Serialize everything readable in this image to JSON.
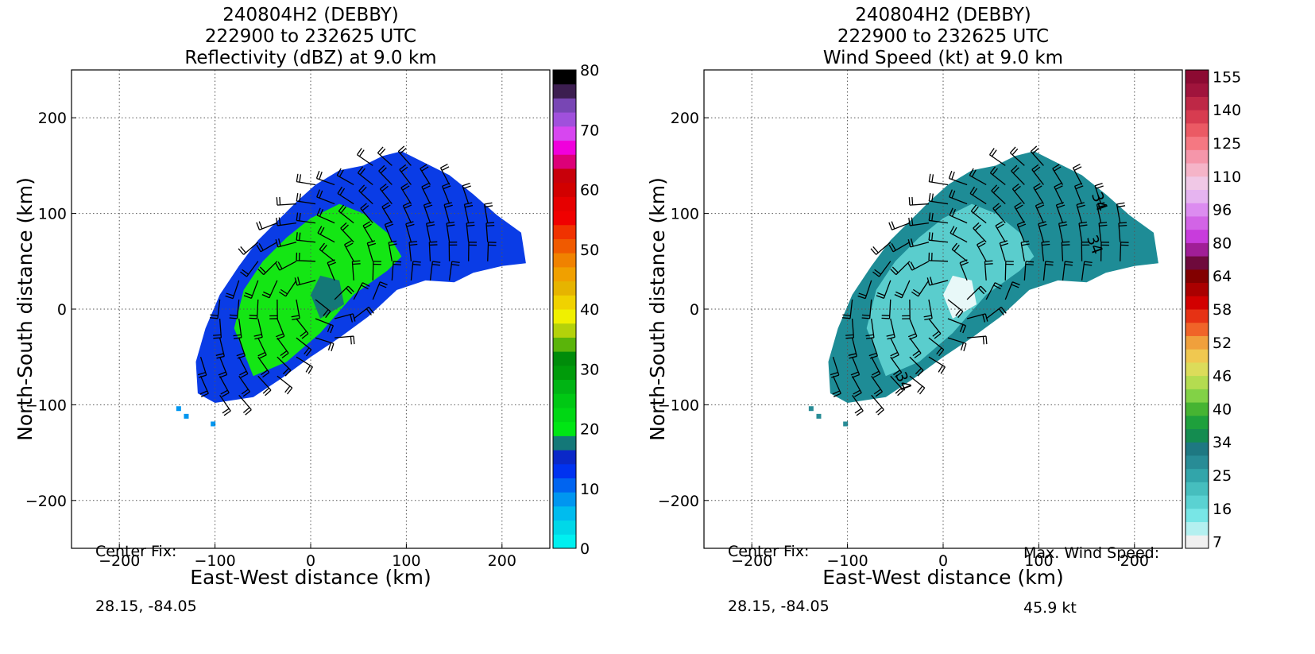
{
  "chart_data": [
    {
      "type": "heatmap",
      "title": "240804H2 (DEBBY)",
      "subtitle": "222900 to 232625 UTC",
      "field_title": "Reflectivity (dBZ) at 9.0 km",
      "xlabel": "East-West distance (km)",
      "ylabel": "North-South distance (km)",
      "xlim": [
        -250,
        250
      ],
      "ylim": [
        -250,
        250
      ],
      "xticks": [
        -200,
        -100,
        0,
        100,
        200
      ],
      "yticks": [
        -200,
        -100,
        0,
        100,
        200
      ],
      "grid": true,
      "colorbar": {
        "levels": [
          0,
          2.5,
          5,
          7.5,
          10,
          12.5,
          15,
          17.5,
          20,
          22.5,
          25,
          27.5,
          30,
          32.5,
          35,
          37.5,
          40,
          42.5,
          45,
          47.5,
          50,
          52.5,
          55,
          57.5,
          60,
          62.5,
          65,
          67.5,
          70,
          72.5,
          75,
          77.5,
          80
        ],
        "ticks": [
          0,
          10,
          20,
          30,
          40,
          50,
          60,
          70,
          80
        ],
        "colors": [
          "#00f0f0",
          "#00d8e8",
          "#00bcee",
          "#0096f0",
          "#0064f0",
          "#0032f0",
          "#0a28c8",
          "#147878",
          "#00e614",
          "#00d714",
          "#00c814",
          "#00b414",
          "#009b0a",
          "#008c0a",
          "#5ab40a",
          "#b4d20a",
          "#f0f000",
          "#f0d200",
          "#e6b400",
          "#f0a000",
          "#f08200",
          "#f05a00",
          "#f03200",
          "#f00000",
          "#e60000",
          "#d20000",
          "#c8000a",
          "#dc0078",
          "#f000dc",
          "#d746f0",
          "#a050dc",
          "#7846b4",
          "#3c1e50",
          "#000000"
        ]
      },
      "center_fix_label": "Center Fix:",
      "center_fix_value": "28.15, -84.05",
      "values_range_dBZ": [
        0,
        30
      ]
    },
    {
      "type": "heatmap",
      "title": "240804H2 (DEBBY)",
      "subtitle": "222900 to 232625 UTC",
      "field_title": "Wind Speed (kt) at 9.0 km",
      "xlabel": "East-West distance (km)",
      "ylabel": "North-South distance (km)",
      "xlim": [
        -250,
        250
      ],
      "ylim": [
        -250,
        250
      ],
      "xticks": [
        -200,
        -100,
        0,
        100,
        200
      ],
      "yticks": [
        -200,
        -100,
        0,
        100,
        200
      ],
      "grid": true,
      "colorbar": {
        "ticks": [
          "7",
          "16",
          "25",
          "34",
          "40",
          "46",
          "52",
          "58",
          "64",
          "80",
          "96",
          "110",
          "125",
          "140",
          "155"
        ],
        "colors": [
          "#f0f0f0",
          "#b4f0f0",
          "#78e6e6",
          "#5ad2d2",
          "#46bebe",
          "#32a5aa",
          "#288c96",
          "#1e7882",
          "#148c50",
          "#1ea03c",
          "#46b432",
          "#82d246",
          "#b4dc50",
          "#dcdc5a",
          "#f0c850",
          "#f0a03c",
          "#f06428",
          "#e63214",
          "#d20000",
          "#aa0000",
          "#820000",
          "#6e0a3c",
          "#a01e96",
          "#c83cdc",
          "#d264e6",
          "#dc8cf0",
          "#e6b4f0",
          "#f0c8e6",
          "#f5b4c8",
          "#f596aa",
          "#f57882",
          "#eb5a64",
          "#d73c50",
          "#be2846",
          "#a0143c",
          "#8c0a32"
        ]
      },
      "contour_labels": [
        "34",
        "34",
        "34"
      ],
      "center_fix_label": "Center Fix:",
      "center_fix_value": "28.15, -84.05",
      "max_wind_label": "Max. Wind Speed:",
      "max_wind_value": "45.9 kt"
    }
  ]
}
